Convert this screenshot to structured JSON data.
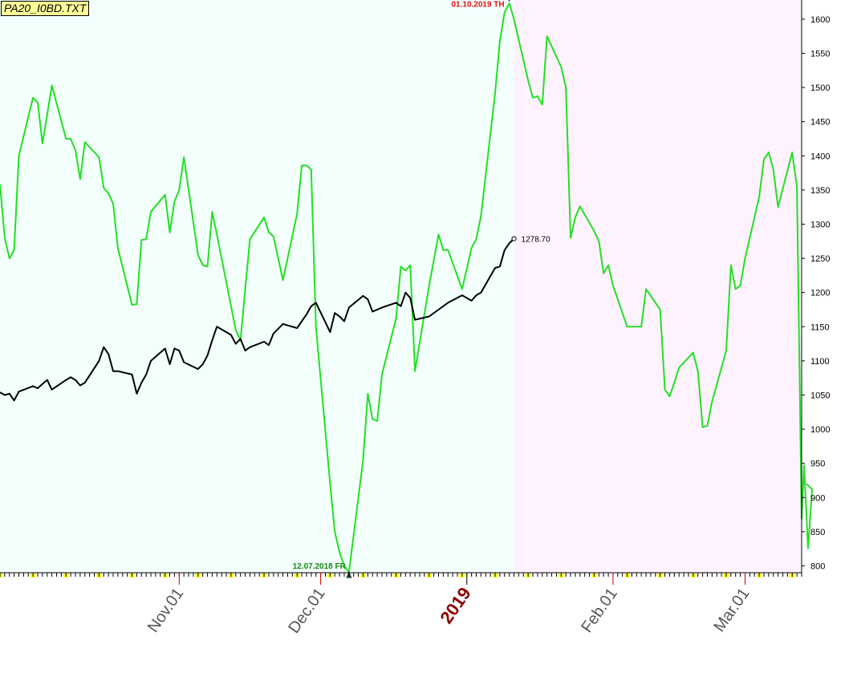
{
  "file_label": "PA20_I0BD.TXT",
  "colors": {
    "green_series": "#22e022",
    "black_series": "#000000",
    "shade_past": "#f3fffc",
    "shade_future": "#fff2ff",
    "high_label": "#dd1111",
    "low_label": "#118811",
    "year_label": "#8b0000",
    "tick_marker": "#ffff00"
  },
  "chart_data": {
    "type": "line",
    "title": "",
    "xlabel": "",
    "ylabel": "",
    "ylim": [
      790,
      1628
    ],
    "xlim": [
      "2018-09-24",
      "2019-03-13"
    ],
    "y_ticks": [
      800,
      850,
      900,
      950,
      1000,
      1050,
      1100,
      1150,
      1200,
      1250,
      1300,
      1350,
      1400,
      1450,
      1500,
      1550,
      1600
    ],
    "x_tick_labels": [
      {
        "label": "Nov.01",
        "date": "2018-11-01",
        "emphasis": false
      },
      {
        "label": "Dec.01",
        "date": "2018-12-01",
        "emphasis": false
      },
      {
        "label": "2019",
        "date": "2019-01-01",
        "emphasis": true
      },
      {
        "label": "Feb.01",
        "date": "2019-02-01",
        "emphasis": false
      },
      {
        "label": "Mar.01",
        "date": "2019-03-01",
        "emphasis": false
      }
    ],
    "shading": {
      "split_date": "2019-01-11"
    },
    "annotations": [
      {
        "text": "01.10.2019 TH",
        "x": "2019-01-10",
        "y": 1623,
        "kind": "high"
      },
      {
        "text": "12.07.2018 FR",
        "x": "2018-12-07",
        "y": 791,
        "kind": "low"
      },
      {
        "text": "1278.70",
        "x": "2019-01-11",
        "y": 1278.7,
        "kind": "last"
      }
    ],
    "series": [
      {
        "color": "#22e022",
        "points": [
          [
            "2018-09-24",
            1358
          ],
          [
            "2018-09-25",
            1280
          ],
          [
            "2018-09-26",
            1250
          ],
          [
            "2018-09-27",
            1262
          ],
          [
            "2018-09-28",
            1400
          ],
          [
            "2018-10-01",
            1485
          ],
          [
            "2018-10-02",
            1478
          ],
          [
            "2018-10-03",
            1418
          ],
          [
            "2018-10-04",
            1460
          ],
          [
            "2018-10-05",
            1503
          ],
          [
            "2018-10-08",
            1425
          ],
          [
            "2018-10-09",
            1425
          ],
          [
            "2018-10-10",
            1408
          ],
          [
            "2018-10-11",
            1366
          ],
          [
            "2018-10-12",
            1420
          ],
          [
            "2018-10-15",
            1398
          ],
          [
            "2018-10-16",
            1353
          ],
          [
            "2018-10-17",
            1345
          ],
          [
            "2018-10-18",
            1330
          ],
          [
            "2018-10-19",
            1265
          ],
          [
            "2018-10-22",
            1182
          ],
          [
            "2018-10-23",
            1183
          ],
          [
            "2018-10-24",
            1277
          ],
          [
            "2018-10-25",
            1278
          ],
          [
            "2018-10-26",
            1318
          ],
          [
            "2018-10-29",
            1343
          ],
          [
            "2018-10-30",
            1288
          ],
          [
            "2018-10-31",
            1333
          ],
          [
            "2018-11-01",
            1350
          ],
          [
            "2018-11-02",
            1398
          ],
          [
            "2018-11-05",
            1255
          ],
          [
            "2018-11-06",
            1240
          ],
          [
            "2018-11-07",
            1238
          ],
          [
            "2018-11-08",
            1318
          ],
          [
            "2018-11-09",
            1285
          ],
          [
            "2018-11-12",
            1180
          ],
          [
            "2018-11-13",
            1145
          ],
          [
            "2018-11-14",
            1130
          ],
          [
            "2018-11-15",
            1205
          ],
          [
            "2018-11-16",
            1278
          ],
          [
            "2018-11-19",
            1310
          ],
          [
            "2018-11-20",
            1288
          ],
          [
            "2018-11-21",
            1282
          ],
          [
            "2018-11-23",
            1218
          ],
          [
            "2018-11-26",
            1315
          ],
          [
            "2018-11-27",
            1386
          ],
          [
            "2018-11-28",
            1386
          ],
          [
            "2018-11-29",
            1380
          ],
          [
            "2018-11-30",
            1150
          ],
          [
            "2018-12-03",
            920
          ],
          [
            "2018-12-04",
            850
          ],
          [
            "2018-12-05",
            820
          ],
          [
            "2018-12-06",
            800
          ],
          [
            "2018-12-07",
            791
          ],
          [
            "2018-12-10",
            955
          ],
          [
            "2018-12-11",
            1052
          ],
          [
            "2018-12-12",
            1015
          ],
          [
            "2018-12-13",
            1012
          ],
          [
            "2018-12-14",
            1080
          ],
          [
            "2018-12-17",
            1162
          ],
          [
            "2018-12-18",
            1238
          ],
          [
            "2018-12-19",
            1232
          ],
          [
            "2018-12-20",
            1240
          ],
          [
            "2018-12-21",
            1085
          ],
          [
            "2018-12-24",
            1210
          ],
          [
            "2018-12-26",
            1285
          ],
          [
            "2018-12-27",
            1262
          ],
          [
            "2018-12-28",
            1262
          ],
          [
            "2018-12-31",
            1205
          ],
          [
            "2019-01-02",
            1265
          ],
          [
            "2019-01-03",
            1278
          ],
          [
            "2019-01-04",
            1312
          ],
          [
            "2019-01-07",
            1492
          ],
          [
            "2019-01-08",
            1568
          ],
          [
            "2019-01-09",
            1610
          ],
          [
            "2019-01-10",
            1623
          ],
          [
            "2019-01-11",
            1600
          ],
          [
            "2019-01-14",
            1510
          ],
          [
            "2019-01-15",
            1485
          ],
          [
            "2019-01-16",
            1487
          ],
          [
            "2019-01-17",
            1475
          ],
          [
            "2019-01-18",
            1575
          ],
          [
            "2019-01-21",
            1530
          ],
          [
            "2019-01-22",
            1500
          ],
          [
            "2019-01-23",
            1280
          ],
          [
            "2019-01-24",
            1310
          ],
          [
            "2019-01-25",
            1326
          ],
          [
            "2019-01-28",
            1290
          ],
          [
            "2019-01-29",
            1275
          ],
          [
            "2019-01-30",
            1228
          ],
          [
            "2019-01-31",
            1240
          ],
          [
            "2019-02-01",
            1210
          ],
          [
            "2019-02-04",
            1150
          ],
          [
            "2019-02-05",
            1150
          ],
          [
            "2019-02-06",
            1150
          ],
          [
            "2019-02-07",
            1150
          ],
          [
            "2019-02-08",
            1205
          ],
          [
            "2019-02-11",
            1175
          ],
          [
            "2019-02-12",
            1058
          ],
          [
            "2019-02-13",
            1048
          ],
          [
            "2019-02-14",
            1068
          ],
          [
            "2019-02-15",
            1090
          ],
          [
            "2019-02-18",
            1112
          ],
          [
            "2019-02-19",
            1085
          ],
          [
            "2019-02-20",
            1003
          ],
          [
            "2019-02-21",
            1005
          ],
          [
            "2019-02-22",
            1040
          ],
          [
            "2019-02-25",
            1115
          ],
          [
            "2019-02-26",
            1240
          ],
          [
            "2019-02-27",
            1205
          ],
          [
            "2019-02-28",
            1210
          ],
          [
            "2019-03-01",
            1250
          ],
          [
            "2019-03-04",
            1340
          ],
          [
            "2019-03-05",
            1395
          ],
          [
            "2019-03-06",
            1405
          ],
          [
            "2019-03-07",
            1380
          ],
          [
            "2019-03-08",
            1325
          ],
          [
            "2019-03-11",
            1405
          ],
          [
            "2019-03-12",
            1355
          ],
          [
            "2019-03-13",
            868
          ]
        ]
      },
      {
        "color": "#000000",
        "points": [
          [
            "2018-09-24",
            1054
          ],
          [
            "2018-09-25",
            1050
          ],
          [
            "2018-09-26",
            1052
          ],
          [
            "2018-09-27",
            1042
          ],
          [
            "2018-09-28",
            1055
          ],
          [
            "2018-10-01",
            1063
          ],
          [
            "2018-10-02",
            1060
          ],
          [
            "2018-10-03",
            1066
          ],
          [
            "2018-10-04",
            1072
          ],
          [
            "2018-10-05",
            1058
          ],
          [
            "2018-10-08",
            1072
          ],
          [
            "2018-10-09",
            1076
          ],
          [
            "2018-10-10",
            1072
          ],
          [
            "2018-10-11",
            1064
          ],
          [
            "2018-10-12",
            1068
          ],
          [
            "2018-10-15",
            1100
          ],
          [
            "2018-10-16",
            1120
          ],
          [
            "2018-10-17",
            1110
          ],
          [
            "2018-10-18",
            1085
          ],
          [
            "2018-10-19",
            1085
          ],
          [
            "2018-10-22",
            1080
          ],
          [
            "2018-10-23",
            1052
          ],
          [
            "2018-10-24",
            1068
          ],
          [
            "2018-10-25",
            1080
          ],
          [
            "2018-10-26",
            1100
          ],
          [
            "2018-10-29",
            1118
          ],
          [
            "2018-10-30",
            1095
          ],
          [
            "2018-10-31",
            1118
          ],
          [
            "2018-11-01",
            1115
          ],
          [
            "2018-11-02",
            1098
          ],
          [
            "2018-11-05",
            1088
          ],
          [
            "2018-11-06",
            1095
          ],
          [
            "2018-11-07",
            1108
          ],
          [
            "2018-11-08",
            1130
          ],
          [
            "2018-11-09",
            1150
          ],
          [
            "2018-11-12",
            1138
          ],
          [
            "2018-11-13",
            1125
          ],
          [
            "2018-11-14",
            1132
          ],
          [
            "2018-11-15",
            1115
          ],
          [
            "2018-11-16",
            1120
          ],
          [
            "2018-11-19",
            1128
          ],
          [
            "2018-11-20",
            1123
          ],
          [
            "2018-11-21",
            1140
          ],
          [
            "2018-11-23",
            1154
          ],
          [
            "2018-11-26",
            1148
          ],
          [
            "2018-11-27",
            1158
          ],
          [
            "2018-11-28",
            1168
          ],
          [
            "2018-11-29",
            1180
          ],
          [
            "2018-11-30",
            1185
          ],
          [
            "2018-12-03",
            1142
          ],
          [
            "2018-12-04",
            1170
          ],
          [
            "2018-12-05",
            1165
          ],
          [
            "2018-12-06",
            1158
          ],
          [
            "2018-12-07",
            1178
          ],
          [
            "2018-12-10",
            1195
          ],
          [
            "2018-12-11",
            1190
          ],
          [
            "2018-12-12",
            1172
          ],
          [
            "2018-12-13",
            1175
          ],
          [
            "2018-12-14",
            1178
          ],
          [
            "2018-12-17",
            1185
          ],
          [
            "2018-12-18",
            1180
          ],
          [
            "2018-12-19",
            1200
          ],
          [
            "2018-12-20",
            1192
          ],
          [
            "2018-12-21",
            1160
          ],
          [
            "2018-12-24",
            1165
          ],
          [
            "2018-12-26",
            1175
          ],
          [
            "2018-12-27",
            1180
          ],
          [
            "2018-12-28",
            1185
          ],
          [
            "2018-12-31",
            1196
          ],
          [
            "2019-01-02",
            1188
          ],
          [
            "2019-01-03",
            1196
          ],
          [
            "2019-01-04",
            1200
          ],
          [
            "2019-01-07",
            1236
          ],
          [
            "2019-01-08",
            1238
          ],
          [
            "2019-01-09",
            1262
          ],
          [
            "2019-01-10",
            1272
          ],
          [
            "2019-01-11",
            1278.7
          ]
        ]
      }
    ]
  }
}
